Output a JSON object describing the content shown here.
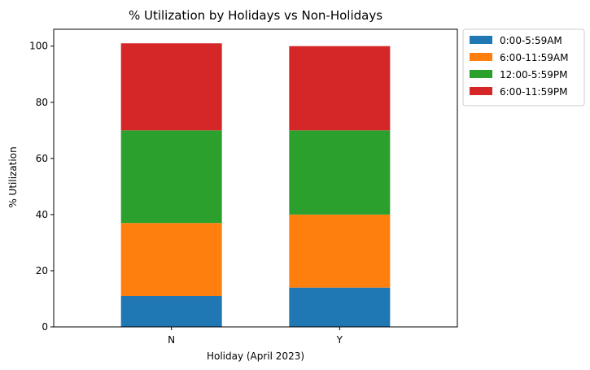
{
  "chart_data": {
    "type": "bar",
    "stacked": true,
    "title": "% Utilization by Holidays vs Non-Holidays",
    "xlabel": "Holiday (April 2023)",
    "ylabel": "% Utilization",
    "ylim": [
      0,
      106
    ],
    "yticks": [
      0,
      20,
      40,
      60,
      80,
      100
    ],
    "categories": [
      "N",
      "Y"
    ],
    "series": [
      {
        "name": "0:00-5:59AM",
        "color": "#1f77b4",
        "values": [
          11,
          14
        ]
      },
      {
        "name": "6:00-11:59AM",
        "color": "#ff7f0e",
        "values": [
          26,
          26
        ]
      },
      {
        "name": "12:00-5:59PM",
        "color": "#2ca02c",
        "values": [
          33,
          30
        ]
      },
      {
        "name": "6:00-11:59PM",
        "color": "#d62728",
        "values": [
          31,
          30
        ]
      }
    ],
    "legend_position": "outside-top-right",
    "grid": false
  }
}
